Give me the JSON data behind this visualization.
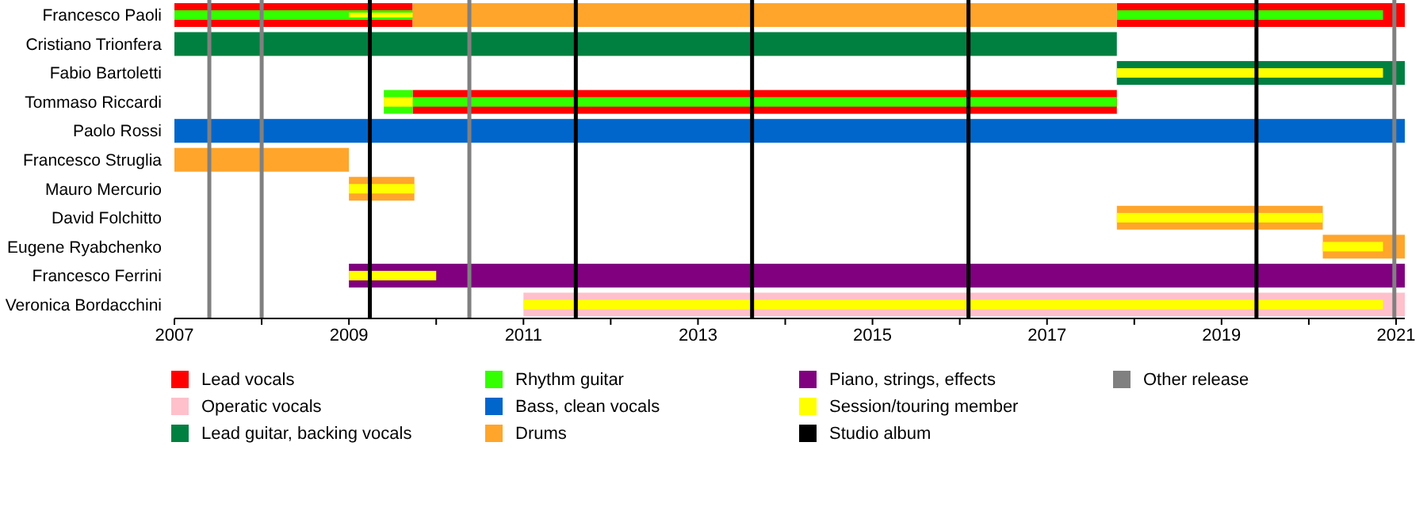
{
  "chart_data": {
    "type": "bar",
    "orientation": "horizontal",
    "categories": [
      "Francesco Paoli",
      "Cristiano Trionfera",
      "Fabio Bartoletti",
      "Tommaso Riccardi",
      "Paolo Rossi",
      "Francesco Struglia",
      "Mauro Mercurio",
      "David Folchitto",
      "Eugene Ryabchenko",
      "Francesco Ferrini",
      "Veronica Bordacchini"
    ],
    "series": [
      {
        "name": "Lead vocals",
        "color": "#ff0000",
        "base": [
          2007,
          null,
          null,
          2009.73,
          null,
          null,
          null,
          null,
          null,
          null,
          null
        ],
        "values": [
          2.73,
          null,
          null,
          8.07,
          null,
          null,
          null,
          null,
          null,
          null,
          null
        ]
      },
      {
        "color": "#ff0000",
        "base": [
          2017.8,
          null,
          null,
          null,
          null,
          null,
          null,
          null,
          null,
          null,
          null
        ],
        "values": [
          3.3,
          null,
          null,
          null,
          null,
          null,
          null,
          null,
          null,
          null,
          null
        ]
      },
      {
        "name": "Operatic vocals",
        "color": "#ffc0cb",
        "base": [
          null,
          null,
          null,
          null,
          null,
          null,
          null,
          null,
          null,
          null,
          2011
        ],
        "values": [
          null,
          null,
          null,
          null,
          null,
          null,
          null,
          null,
          null,
          null,
          10.1
        ]
      },
      {
        "name": "Lead guitar, backing vocals",
        "color": "#008040",
        "base": [
          null,
          2007,
          2017.8,
          null,
          null,
          null,
          null,
          null,
          null,
          null,
          null
        ],
        "values": [
          null,
          10.8,
          3.3,
          null,
          null,
          null,
          null,
          null,
          null,
          null,
          null
        ]
      },
      {
        "name": "Rhythm guitar",
        "color": "#33ff00",
        "base": [
          2007,
          null,
          null,
          2009.4,
          null,
          null,
          null,
          null,
          null,
          null,
          null
        ],
        "values": [
          2.73,
          null,
          null,
          0.33,
          null,
          null,
          null,
          null,
          null,
          null,
          null
        ]
      },
      {
        "color": "#33ff00",
        "base": [
          2017.8,
          null,
          null,
          2009.73,
          null,
          null,
          null,
          null,
          null,
          null,
          null
        ],
        "values": [
          3.05,
          null,
          null,
          8.07,
          null,
          null,
          null,
          null,
          null,
          null,
          null
        ]
      },
      {
        "name": "Bass, clean vocals",
        "color": "#0066cc",
        "base": [
          null,
          null,
          null,
          null,
          2007,
          null,
          null,
          null,
          null,
          null,
          null
        ],
        "values": [
          null,
          null,
          null,
          null,
          14.1,
          null,
          null,
          null,
          null,
          null,
          null
        ]
      },
      {
        "name": "Drums",
        "color": "#ffa52b",
        "base": [
          2009.73,
          null,
          null,
          null,
          null,
          2007,
          2009,
          2017.8,
          2020.16,
          null,
          null
        ],
        "values": [
          8.07,
          null,
          null,
          null,
          null,
          2.0,
          0.75,
          2.36,
          0.94,
          null,
          null
        ]
      },
      {
        "name": "Piano, strings, effects",
        "color": "#800080",
        "base": [
          null,
          null,
          null,
          null,
          null,
          null,
          null,
          null,
          null,
          2009,
          null
        ],
        "values": [
          null,
          null,
          null,
          null,
          null,
          null,
          null,
          null,
          null,
          12.1,
          null
        ]
      },
      {
        "name": "Session/touring member",
        "color": "#ffff00",
        "base": [
          2009,
          null,
          2017.8,
          2009.4,
          null,
          null,
          2009,
          2017.8,
          2020.16,
          2009,
          2011
        ],
        "values": [
          0.73,
          null,
          3.05,
          0.33,
          null,
          null,
          0.75,
          2.36,
          0.69,
          1.0,
          9.85
        ]
      }
    ],
    "xlim": [
      2007,
      2021.1
    ],
    "xticks": [
      2007,
      {
        "value": 2008,
        "label": null
      },
      2009,
      {
        "value": 2010,
        "label": null
      },
      2011,
      {
        "value": 2012,
        "label": null
      },
      2013,
      {
        "value": 2014,
        "label": null
      },
      2015,
      {
        "value": 2016,
        "label": null
      },
      2017,
      {
        "value": 2018,
        "label": null
      },
      2019,
      {
        "value": 2020,
        "label": null
      },
      2021
    ],
    "ref_lines": [
      {
        "axis": "x",
        "value": 2007.4,
        "label": "Other release",
        "color": "#808080"
      },
      {
        "axis": "x",
        "value": 2008.0,
        "color": "#808080"
      },
      {
        "axis": "x",
        "value": 2010.38,
        "color": "#808080"
      },
      {
        "axis": "x",
        "value": 2020.98,
        "color": "#808080"
      },
      {
        "axis": "x",
        "value": 2009.24,
        "label": "Studio album",
        "color": "#000000"
      },
      {
        "axis": "x",
        "value": 2011.6,
        "color": "#000000"
      },
      {
        "axis": "x",
        "value": 2013.62,
        "color": "#000000"
      },
      {
        "axis": "x",
        "value": 2016.1,
        "color": "#000000"
      },
      {
        "axis": "x",
        "value": 2019.4,
        "color": "#000000"
      }
    ],
    "legend": "bottom"
  }
}
